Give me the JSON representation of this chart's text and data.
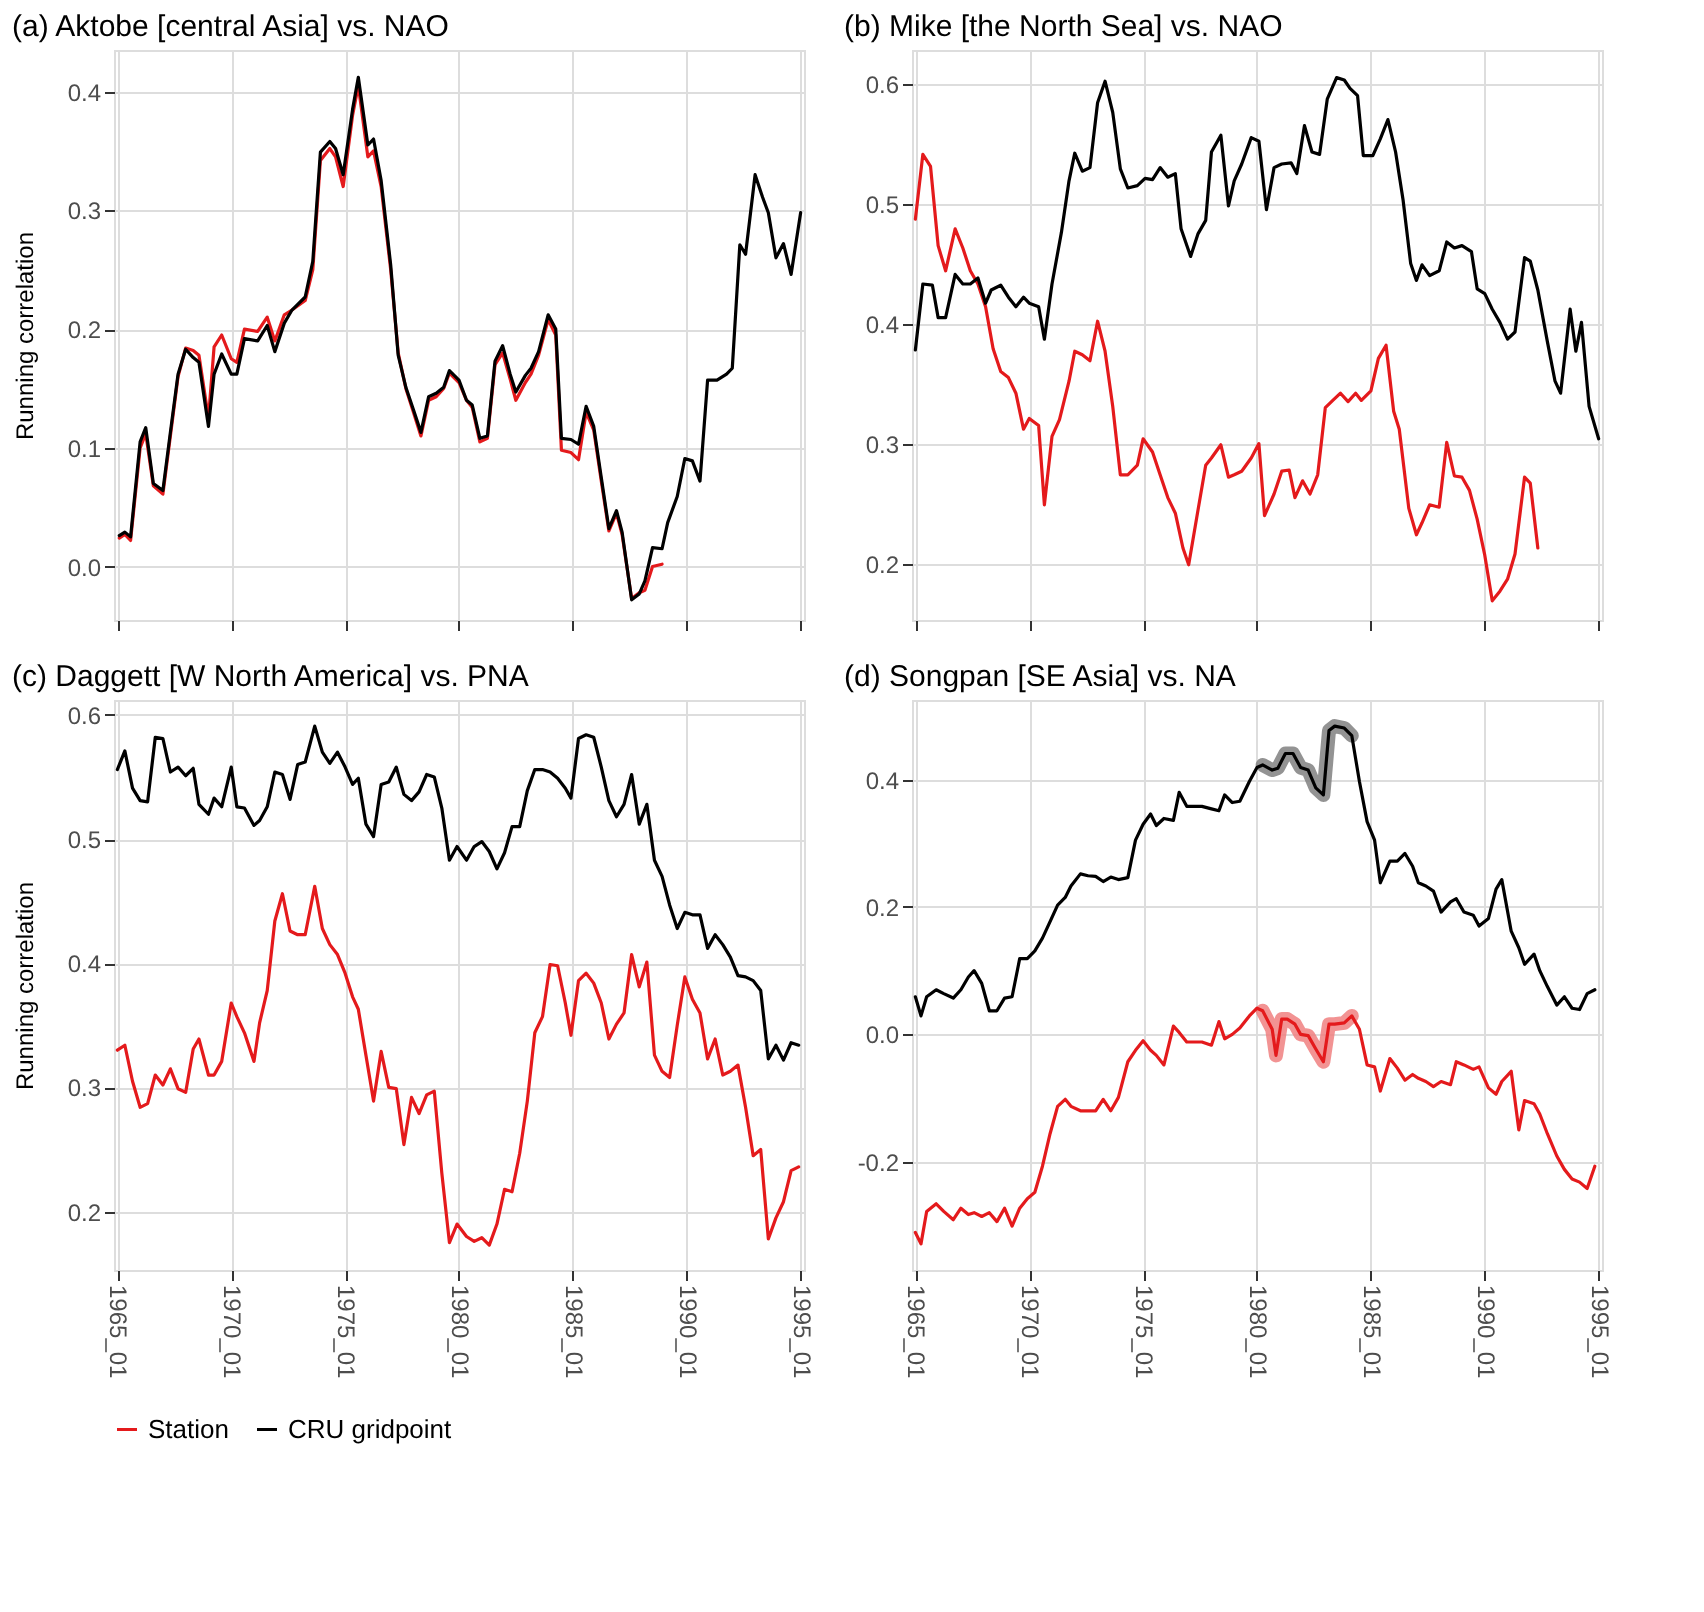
{
  "chart_data": [
    {
      "type": "line",
      "title": "(a) Aktobe [central Asia] vs. NAO",
      "ylabel": "Running correlation",
      "xlim": [
        "1964-11-08",
        "1995-02-24"
      ],
      "ylim": [
        -0.045,
        0.435
      ],
      "xticks": [
        {
          "value": "1965-01",
          "label": "1965_01"
        },
        {
          "value": "1970-01",
          "label": "1970_01"
        },
        {
          "value": "1975-01",
          "label": "1975_01"
        },
        {
          "value": "1980-01",
          "label": "1980_01"
        },
        {
          "value": "1985-01",
          "label": "1985_01"
        },
        {
          "value": "1990-01",
          "label": "1990_01"
        },
        {
          "value": "1995-01",
          "label": "1995_01"
        }
      ],
      "yticks": [
        {
          "value": 0,
          "label": "0.0"
        },
        0.1,
        0.2,
        0.3,
        0.4
      ],
      "grid": true,
      "tick_labels": "y",
      "legend": "bottom",
      "line_style": "solid",
      "marker": "none",
      "series": [
        {
          "name": "Station",
          "color": "#e41a1c",
          "x": [
            "1965-02",
            "1965-05",
            "1965-08",
            "1966-01",
            "1966-04",
            "1966-08",
            "1967-01",
            "1967-05",
            "1967-09",
            "1968-01",
            "1968-05",
            "1968-08",
            "1969-01",
            "1969-04",
            "1969-08",
            "1970-01",
            "1970-04",
            "1970-08",
            "1971-03",
            "1971-08",
            "1971-12",
            "1972-05",
            "1972-09",
            "1973-04",
            "1973-08",
            "1973-12",
            "1974-05",
            "1974-08",
            "1974-12",
            "1975-05",
            "1975-08",
            "1976-01",
            "1976-04",
            "1976-08",
            "1977-01",
            "1977-05",
            "1977-09",
            "1978-01",
            "1978-05",
            "1978-09",
            "1979-01",
            "1979-05",
            "1979-08",
            "1980-01",
            "1980-05",
            "1980-08",
            "1980-12",
            "1981-04",
            "1981-08",
            "1981-12",
            "1982-04",
            "1982-07",
            "1982-12",
            "1983-03",
            "1983-07",
            "1983-12",
            "1984-04",
            "1984-07",
            "1984-12",
            "1985-04",
            "1985-08",
            "1985-12",
            "1986-04",
            "1986-08",
            "1986-12",
            "1987-03",
            "1987-08",
            "1987-12",
            "1988-03",
            "1988-07",
            "1988-12"
          ],
          "values": [
            0.024,
            0.027,
            0.022,
            0.1,
            0.112,
            0.068,
            0.061,
            0.11,
            0.16,
            0.184,
            0.182,
            0.178,
            0.125,
            0.185,
            0.195,
            0.175,
            0.172,
            0.2,
            0.198,
            0.21,
            0.19,
            0.212,
            0.216,
            0.224,
            0.25,
            0.342,
            0.352,
            0.345,
            0.32,
            0.38,
            0.405,
            0.345,
            0.35,
            0.32,
            0.25,
            0.18,
            0.15,
            0.13,
            0.11,
            0.14,
            0.143,
            0.15,
            0.163,
            0.155,
            0.14,
            0.134,
            0.105,
            0.108,
            0.17,
            0.18,
            0.158,
            0.14,
            0.155,
            0.162,
            0.178,
            0.208,
            0.195,
            0.098,
            0.096,
            0.09,
            0.13,
            0.115,
            0.072,
            0.03,
            0.045,
            0.027,
            -0.027,
            -0.022,
            -0.02,
            0.0,
            0.002
          ]
        },
        {
          "name": "CRU gridpoint",
          "color": "#000000",
          "x": [
            "1965-02",
            "1965-05",
            "1965-08",
            "1966-01",
            "1966-04",
            "1966-08",
            "1967-01",
            "1967-05",
            "1967-09",
            "1968-01",
            "1968-05",
            "1968-08",
            "1969-01",
            "1969-04",
            "1969-08",
            "1970-01",
            "1970-04",
            "1970-08",
            "1971-03",
            "1971-08",
            "1971-12",
            "1972-05",
            "1972-09",
            "1973-04",
            "1973-08",
            "1973-12",
            "1974-05",
            "1974-08",
            "1974-12",
            "1975-05",
            "1975-08",
            "1976-01",
            "1976-04",
            "1976-08",
            "1977-01",
            "1977-05",
            "1977-09",
            "1978-01",
            "1978-05",
            "1978-09",
            "1979-01",
            "1979-05",
            "1979-08",
            "1980-01",
            "1980-05",
            "1980-08",
            "1980-12",
            "1981-04",
            "1981-08",
            "1981-12",
            "1982-04",
            "1982-07",
            "1982-12",
            "1983-03",
            "1983-07",
            "1983-12",
            "1984-04",
            "1984-07",
            "1984-12",
            "1985-04",
            "1985-08",
            "1985-12",
            "1986-04",
            "1986-08",
            "1986-12",
            "1987-03",
            "1987-08",
            "1987-12",
            "1988-03",
            "1988-07",
            "1988-12",
            "1989-03",
            "1989-08",
            "1989-12",
            "1990-04",
            "1990-08",
            "1990-12",
            "1991-05",
            "1991-10",
            "1992-01",
            "1992-05",
            "1992-08",
            "1993-01",
            "1993-05",
            "1993-08",
            "1993-12",
            "1994-04",
            "1994-08",
            "1995-01"
          ],
          "values": [
            0.026,
            0.029,
            0.025,
            0.105,
            0.117,
            0.07,
            0.064,
            0.113,
            0.162,
            0.183,
            0.176,
            0.172,
            0.118,
            0.162,
            0.179,
            0.162,
            0.162,
            0.192,
            0.19,
            0.203,
            0.181,
            0.205,
            0.216,
            0.227,
            0.257,
            0.349,
            0.358,
            0.352,
            0.33,
            0.385,
            0.412,
            0.355,
            0.36,
            0.325,
            0.254,
            0.178,
            0.151,
            0.132,
            0.113,
            0.143,
            0.146,
            0.151,
            0.165,
            0.157,
            0.14,
            0.136,
            0.108,
            0.11,
            0.173,
            0.186,
            0.162,
            0.147,
            0.161,
            0.167,
            0.181,
            0.212,
            0.2,
            0.108,
            0.107,
            0.103,
            0.135,
            0.118,
            0.075,
            0.032,
            0.047,
            0.029,
            -0.028,
            -0.023,
            -0.012,
            0.016,
            0.015,
            0.037,
            0.059,
            0.091,
            0.089,
            0.072,
            0.157,
            0.157,
            0.162,
            0.167,
            0.271,
            0.263,
            0.33,
            0.311,
            0.298,
            0.26,
            0.272,
            0.246,
            0.298
          ]
        }
      ]
    },
    {
      "type": "line",
      "title": "(b) Mike [the North Sea] vs. NAO",
      "xlim": [
        "1964-11-08",
        "1995-02-24"
      ],
      "ylim": [
        0.153,
        0.628
      ],
      "xticks": [
        {
          "value": "1965-01",
          "label": "1965_01"
        },
        {
          "value": "1970-01",
          "label": "1970_01"
        },
        {
          "value": "1975-01",
          "label": "1975_01"
        },
        {
          "value": "1980-01",
          "label": "1980_01"
        },
        {
          "value": "1985-01",
          "label": "1985_01"
        },
        {
          "value": "1990-01",
          "label": "1990_01"
        },
        {
          "value": "1995-01",
          "label": "1995_01"
        }
      ],
      "yticks": [
        0.2,
        0.3,
        0.4,
        0.5,
        0.6
      ],
      "grid": true,
      "tick_labels": "y",
      "legend": "bottom",
      "line_style": "solid",
      "marker": "none",
      "series": [
        {
          "name": "Station",
          "color": "#e41a1c",
          "x": [
            "1965-01",
            "1965-05",
            "1965-09",
            "1966-01",
            "1966-05",
            "1966-10",
            "1967-02",
            "1967-06",
            "1967-10",
            "1968-02",
            "1968-06",
            "1968-10",
            "1969-02",
            "1969-06",
            "1969-10",
            "1970-01",
            "1970-06",
            "1970-09",
            "1971-01",
            "1971-05",
            "1971-10",
            "1972-01",
            "1972-05",
            "1972-09",
            "1973-01",
            "1973-05",
            "1973-09",
            "1974-01",
            "1974-05",
            "1974-10",
            "1975-01",
            "1975-06",
            "1975-10",
            "1976-02",
            "1976-06",
            "1976-10",
            "1977-01",
            "1977-06",
            "1977-10",
            "1978-01",
            "1978-06",
            "1978-10",
            "1979-01",
            "1979-05",
            "1979-10",
            "1980-02",
            "1980-05",
            "1980-10",
            "1981-02",
            "1981-06",
            "1981-09",
            "1982-01",
            "1982-05",
            "1982-09",
            "1983-01",
            "1983-05",
            "1983-09",
            "1984-01",
            "1984-05",
            "1984-08",
            "1985-01",
            "1985-05",
            "1985-09",
            "1986-01",
            "1986-04",
            "1986-09",
            "1987-01",
            "1987-04",
            "1987-08",
            "1988-01",
            "1988-05",
            "1988-09",
            "1989-01",
            "1989-05",
            "1989-09",
            "1990-01",
            "1990-05",
            "1990-09",
            "1991-01",
            "1991-05",
            "1991-10",
            "1992-01",
            "1992-05"
          ],
          "values": [
            0.487,
            0.541,
            0.531,
            0.465,
            0.444,
            0.479,
            0.463,
            0.444,
            0.433,
            0.414,
            0.379,
            0.36,
            0.355,
            0.342,
            0.312,
            0.321,
            0.315,
            0.249,
            0.306,
            0.32,
            0.352,
            0.377,
            0.374,
            0.369,
            0.402,
            0.377,
            0.331,
            0.274,
            0.274,
            0.282,
            0.304,
            0.293,
            0.274,
            0.255,
            0.242,
            0.213,
            0.199,
            0.245,
            0.282,
            0.288,
            0.299,
            0.272,
            0.274,
            0.277,
            0.288,
            0.3,
            0.24,
            0.258,
            0.277,
            0.278,
            0.255,
            0.269,
            0.258,
            0.274,
            0.33,
            0.336,
            0.342,
            0.335,
            0.342,
            0.336,
            0.344,
            0.371,
            0.382,
            0.327,
            0.312,
            0.246,
            0.224,
            0.234,
            0.249,
            0.247,
            0.301,
            0.273,
            0.272,
            0.261,
            0.237,
            0.207,
            0.169,
            0.177,
            0.187,
            0.208,
            0.272,
            0.267,
            0.213
          ]
        },
        {
          "name": "CRU gridpoint",
          "color": "#000000",
          "x": [
            "1965-01",
            "1965-05",
            "1965-10",
            "1966-01",
            "1966-05",
            "1966-10",
            "1967-02",
            "1967-06",
            "1967-10",
            "1968-02",
            "1968-05",
            "1968-10",
            "1969-02",
            "1969-06",
            "1969-10",
            "1970-01",
            "1970-06",
            "1970-09",
            "1971-01",
            "1971-06",
            "1971-10",
            "1972-01",
            "1972-05",
            "1972-09",
            "1973-01",
            "1973-05",
            "1973-09",
            "1974-01",
            "1974-05",
            "1974-10",
            "1975-02",
            "1975-06",
            "1975-10",
            "1976-02",
            "1976-06",
            "1976-09",
            "1977-02",
            "1977-06",
            "1977-10",
            "1978-01",
            "1978-06",
            "1978-10",
            "1979-01",
            "1979-05",
            "1979-10",
            "1980-02",
            "1980-06",
            "1980-10",
            "1981-02",
            "1981-07",
            "1981-10",
            "1982-02",
            "1982-06",
            "1982-10",
            "1983-02",
            "1983-07",
            "1983-11",
            "1984-02",
            "1984-06",
            "1984-09",
            "1985-02",
            "1985-06",
            "1985-10",
            "1986-02",
            "1986-06",
            "1986-10",
            "1987-01",
            "1987-04",
            "1987-08",
            "1988-01",
            "1988-05",
            "1988-09",
            "1989-01",
            "1989-06",
            "1989-09",
            "1990-01",
            "1990-05",
            "1990-09",
            "1991-01",
            "1991-05",
            "1991-10",
            "1992-01",
            "1992-05",
            "1992-10",
            "1993-02",
            "1993-05",
            "1993-10",
            "1994-01",
            "1994-04",
            "1994-08",
            "1995-01"
          ],
          "values": [
            0.378,
            0.433,
            0.432,
            0.405,
            0.405,
            0.441,
            0.433,
            0.433,
            0.438,
            0.417,
            0.428,
            0.432,
            0.422,
            0.414,
            0.422,
            0.417,
            0.414,
            0.387,
            0.433,
            0.476,
            0.519,
            0.542,
            0.527,
            0.53,
            0.584,
            0.602,
            0.576,
            0.529,
            0.513,
            0.515,
            0.521,
            0.52,
            0.53,
            0.522,
            0.525,
            0.479,
            0.456,
            0.475,
            0.486,
            0.543,
            0.557,
            0.498,
            0.519,
            0.533,
            0.555,
            0.552,
            0.495,
            0.53,
            0.533,
            0.534,
            0.525,
            0.565,
            0.543,
            0.541,
            0.587,
            0.605,
            0.603,
            0.596,
            0.59,
            0.54,
            0.54,
            0.554,
            0.57,
            0.543,
            0.503,
            0.45,
            0.436,
            0.449,
            0.44,
            0.444,
            0.468,
            0.463,
            0.465,
            0.46,
            0.429,
            0.425,
            0.412,
            0.401,
            0.387,
            0.393,
            0.455,
            0.452,
            0.428,
            0.385,
            0.352,
            0.342,
            0.412,
            0.377,
            0.401,
            0.331,
            0.304
          ]
        }
      ]
    },
    {
      "type": "line",
      "title": "(c) Daggett [W North America] vs. PNA",
      "ylabel": "Running correlation",
      "xlim": [
        "1964-11-08",
        "1995-02-24"
      ],
      "ylim": [
        0.153,
        0.612
      ],
      "xticks": [
        {
          "value": "1965-01",
          "label": "1965_01"
        },
        {
          "value": "1970-01",
          "label": "1970_01"
        },
        {
          "value": "1975-01",
          "label": "1975_01"
        },
        {
          "value": "1980-01",
          "label": "1980_01"
        },
        {
          "value": "1985-01",
          "label": "1985_01"
        },
        {
          "value": "1990-01",
          "label": "1990_01"
        },
        {
          "value": "1995-01",
          "label": "1995_01"
        }
      ],
      "yticks": [
        0.2,
        0.3,
        0.4,
        0.5,
        0.6
      ],
      "grid": true,
      "legend": "bottom",
      "line_style": "solid",
      "marker": "none",
      "series": [
        {
          "name": "Station",
          "color": "#e41a1c",
          "x": [
            "1965-01",
            "1965-05",
            "1965-09",
            "1966-01",
            "1966-05",
            "1966-09",
            "1967-01",
            "1967-05",
            "1967-09",
            "1968-01",
            "1968-05",
            "1968-08",
            "1969-01",
            "1969-04",
            "1969-08",
            "1970-01",
            "1970-04",
            "1970-08",
            "1971-01",
            "1971-04",
            "1971-08",
            "1971-12",
            "1972-04",
            "1972-08",
            "1972-12",
            "1973-04",
            "1973-09",
            "1974-01",
            "1974-05",
            "1974-09",
            "1975-01",
            "1975-05",
            "1975-08",
            "1975-12",
            "1976-04",
            "1976-08",
            "1976-12",
            "1977-04",
            "1977-08",
            "1977-12",
            "1978-04",
            "1978-08",
            "1978-12",
            "1979-04",
            "1979-08",
            "1979-12",
            "1980-05",
            "1980-09",
            "1981-01",
            "1981-05",
            "1981-09",
            "1982-01",
            "1982-05",
            "1982-09",
            "1983-01",
            "1983-05",
            "1983-09",
            "1984-01",
            "1984-05",
            "1984-09",
            "1984-12",
            "1985-04",
            "1985-08",
            "1985-12",
            "1986-04",
            "1986-08",
            "1986-12",
            "1987-04",
            "1987-08",
            "1987-12",
            "1988-04",
            "1988-08",
            "1988-12",
            "1989-04",
            "1989-08",
            "1989-12",
            "1990-04",
            "1990-08",
            "1990-12",
            "1991-04",
            "1991-08",
            "1991-12",
            "1992-04",
            "1992-08",
            "1992-12",
            "1993-04",
            "1993-08",
            "1993-12",
            "1994-04",
            "1994-08",
            "1994-12"
          ],
          "values": [
            0.33,
            0.334,
            0.305,
            0.284,
            0.287,
            0.31,
            0.302,
            0.315,
            0.299,
            0.296,
            0.331,
            0.339,
            0.31,
            0.31,
            0.321,
            0.368,
            0.357,
            0.344,
            0.321,
            0.352,
            0.378,
            0.434,
            0.456,
            0.426,
            0.423,
            0.423,
            0.462,
            0.428,
            0.415,
            0.407,
            0.392,
            0.373,
            0.363,
            0.326,
            0.289,
            0.329,
            0.3,
            0.299,
            0.254,
            0.292,
            0.279,
            0.294,
            0.297,
            0.231,
            0.175,
            0.19,
            0.18,
            0.176,
            0.179,
            0.173,
            0.19,
            0.218,
            0.216,
            0.247,
            0.289,
            0.344,
            0.357,
            0.399,
            0.398,
            0.368,
            0.342,
            0.386,
            0.392,
            0.384,
            0.368,
            0.339,
            0.351,
            0.36,
            0.407,
            0.381,
            0.401,
            0.326,
            0.313,
            0.308,
            0.35,
            0.389,
            0.371,
            0.36,
            0.323,
            0.339,
            0.31,
            0.313,
            0.318,
            0.284,
            0.245,
            0.25,
            0.178,
            0.195,
            0.208,
            0.233,
            0.236
          ]
        },
        {
          "name": "CRU gridpoint",
          "color": "#000000",
          "x": [
            "1965-01",
            "1965-05",
            "1965-09",
            "1966-01",
            "1966-05",
            "1966-09",
            "1967-01",
            "1967-05",
            "1967-09",
            "1968-01",
            "1968-05",
            "1968-08",
            "1969-01",
            "1969-04",
            "1969-08",
            "1970-01",
            "1970-04",
            "1970-08",
            "1971-01",
            "1971-04",
            "1971-08",
            "1971-12",
            "1972-04",
            "1972-08",
            "1972-12",
            "1973-04",
            "1973-09",
            "1974-01",
            "1974-05",
            "1974-09",
            "1975-01",
            "1975-05",
            "1975-08",
            "1975-12",
            "1976-04",
            "1976-08",
            "1976-12",
            "1977-04",
            "1977-08",
            "1977-12",
            "1978-04",
            "1978-08",
            "1978-12",
            "1979-04",
            "1979-08",
            "1979-12",
            "1980-05",
            "1980-09",
            "1981-01",
            "1981-05",
            "1981-09",
            "1982-01",
            "1982-05",
            "1982-09",
            "1983-01",
            "1983-05",
            "1983-09",
            "1984-01",
            "1984-05",
            "1984-09",
            "1984-12",
            "1985-04",
            "1985-08",
            "1985-12",
            "1986-04",
            "1986-08",
            "1986-12",
            "1987-04",
            "1987-08",
            "1987-12",
            "1988-04",
            "1988-08",
            "1988-12",
            "1989-04",
            "1989-08",
            "1989-12",
            "1990-04",
            "1990-08",
            "1990-12",
            "1991-04",
            "1991-08",
            "1991-12",
            "1992-04",
            "1992-08",
            "1992-12",
            "1993-04",
            "1993-08",
            "1993-12",
            "1994-04",
            "1994-08",
            "1994-12"
          ],
          "values": [
            0.556,
            0.571,
            0.541,
            0.531,
            0.53,
            0.582,
            0.581,
            0.554,
            0.558,
            0.551,
            0.557,
            0.528,
            0.52,
            0.533,
            0.526,
            0.558,
            0.526,
            0.525,
            0.511,
            0.515,
            0.526,
            0.554,
            0.552,
            0.532,
            0.56,
            0.562,
            0.591,
            0.57,
            0.561,
            0.57,
            0.558,
            0.544,
            0.549,
            0.512,
            0.502,
            0.544,
            0.546,
            0.558,
            0.536,
            0.531,
            0.538,
            0.552,
            0.55,
            0.525,
            0.483,
            0.494,
            0.483,
            0.494,
            0.498,
            0.49,
            0.476,
            0.489,
            0.51,
            0.51,
            0.539,
            0.556,
            0.556,
            0.554,
            0.549,
            0.541,
            0.533,
            0.581,
            0.584,
            0.582,
            0.558,
            0.531,
            0.518,
            0.528,
            0.552,
            0.512,
            0.528,
            0.483,
            0.47,
            0.447,
            0.428,
            0.441,
            0.439,
            0.439,
            0.412,
            0.423,
            0.415,
            0.405,
            0.39,
            0.389,
            0.386,
            0.378,
            0.323,
            0.334,
            0.322,
            0.336,
            0.334
          ]
        }
      ]
    },
    {
      "type": "line",
      "title": "(d) Songpan [SE Asia] vs. NA",
      "xlim": [
        "1964-11-08",
        "1995-02-24"
      ],
      "ylim": [
        -0.37,
        0.525
      ],
      "xticks": [
        {
          "value": "1965-01",
          "label": "1965_01"
        },
        {
          "value": "1970-01",
          "label": "1970_01"
        },
        {
          "value": "1975-01",
          "label": "1975_01"
        },
        {
          "value": "1980-01",
          "label": "1980_01"
        },
        {
          "value": "1985-01",
          "label": "1985_01"
        },
        {
          "value": "1990-01",
          "label": "1990_01"
        },
        {
          "value": "1995-01",
          "label": "1995_01"
        }
      ],
      "yticks": [
        -0.2,
        {
          "value": 0,
          "label": "0.0"
        },
        0.2,
        0.4
      ],
      "grid": true,
      "legend": "bottom",
      "line_style": "solid",
      "marker": "none",
      "series": [
        {
          "color": "#808080",
          "x": [
            "1980-04",
            "1980-09",
            "1980-12",
            "1981-04",
            "1981-08",
            "1981-12",
            "1982-04",
            "1982-08",
            "1982-12",
            "1983-03",
            "1983-06",
            "1983-11",
            "1984-03"
          ],
          "values": [
            0.423,
            0.415,
            0.418,
            0.441,
            0.441,
            0.419,
            0.415,
            0.387,
            0.376,
            0.477,
            0.484,
            0.481,
            0.469
          ]
        },
        {
          "color": "#f08080",
          "x": [
            "1980-04",
            "1980-09",
            "1980-11",
            "1981-02",
            "1981-05",
            "1981-09",
            "1981-12",
            "1982-04",
            "1982-08",
            "1982-12",
            "1983-03",
            "1983-06",
            "1983-11",
            "1984-03"
          ],
          "values": [
            0.037,
            0.008,
            -0.033,
            0.024,
            0.024,
            0.016,
            0.0,
            -0.002,
            -0.023,
            -0.043,
            0.016,
            0.016,
            0.018,
            0.029
          ]
        },
        {
          "name": "Station",
          "color": "#e41a1c",
          "x": [
            "1965-01",
            "1965-04",
            "1965-07",
            "1965-12",
            "1966-04",
            "1966-09",
            "1967-01",
            "1967-05",
            "1967-08",
            "1967-12",
            "1968-04",
            "1968-08",
            "1968-12",
            "1969-04",
            "1969-08",
            "1969-12",
            "1970-04",
            "1970-08",
            "1970-12",
            "1971-04",
            "1971-08",
            "1971-11",
            "1972-04",
            "1972-08",
            "1972-12",
            "1973-04",
            "1973-08",
            "1973-12",
            "1974-05",
            "1974-09",
            "1975-01",
            "1975-05",
            "1975-08",
            "1975-12",
            "1976-05",
            "1976-08",
            "1976-12",
            "1977-04",
            "1977-08",
            "1978-01",
            "1978-05",
            "1978-08",
            "1978-12",
            "1979-04",
            "1979-09",
            "1980-01",
            "1980-04",
            "1980-09",
            "1980-11",
            "1981-02",
            "1981-05",
            "1981-09",
            "1981-12",
            "1982-04",
            "1982-08",
            "1982-12",
            "1983-03",
            "1983-06",
            "1983-11",
            "1984-03",
            "1984-07",
            "1984-11",
            "1985-03",
            "1985-06",
            "1985-11",
            "1986-03",
            "1986-07",
            "1986-11",
            "1987-02",
            "1987-06",
            "1987-10",
            "1988-02",
            "1988-07",
            "1988-10",
            "1989-02",
            "1989-07",
            "1989-10",
            "1990-03",
            "1990-07",
            "1990-10",
            "1991-03",
            "1991-07",
            "1991-10",
            "1992-03",
            "1992-06",
            "1992-10",
            "1993-03",
            "1993-07",
            "1993-11",
            "1994-03",
            "1994-07",
            "1994-11"
          ],
          "values": [
            -0.311,
            -0.329,
            -0.278,
            -0.266,
            -0.278,
            -0.291,
            -0.273,
            -0.283,
            -0.28,
            -0.286,
            -0.28,
            -0.294,
            -0.273,
            -0.301,
            -0.273,
            -0.258,
            -0.248,
            -0.207,
            -0.156,
            -0.113,
            -0.102,
            -0.113,
            -0.12,
            -0.12,
            -0.12,
            -0.102,
            -0.12,
            -0.099,
            -0.043,
            -0.025,
            -0.01,
            -0.025,
            -0.033,
            -0.048,
            0.013,
            0.003,
            -0.012,
            -0.012,
            -0.012,
            -0.017,
            0.02,
            -0.007,
            0.0,
            0.01,
            0.029,
            0.041,
            0.037,
            0.008,
            -0.033,
            0.024,
            0.024,
            0.016,
            0.0,
            -0.002,
            -0.023,
            -0.043,
            0.016,
            0.016,
            0.018,
            0.029,
            0.008,
            -0.048,
            -0.051,
            -0.089,
            -0.038,
            -0.053,
            -0.072,
            -0.063,
            -0.069,
            -0.074,
            -0.082,
            -0.074,
            -0.079,
            -0.043,
            -0.048,
            -0.055,
            -0.051,
            -0.084,
            -0.094,
            -0.074,
            -0.058,
            -0.15,
            -0.104,
            -0.109,
            -0.125,
            -0.156,
            -0.191,
            -0.212,
            -0.227,
            -0.232,
            -0.242,
            -0.207
          ]
        },
        {
          "name": "CRU gridpoint",
          "color": "#000000",
          "x": [
            "1965-01",
            "1965-04",
            "1965-07",
            "1965-12",
            "1966-04",
            "1966-09",
            "1967-01",
            "1967-05",
            "1967-08",
            "1967-12",
            "1968-04",
            "1968-08",
            "1968-12",
            "1969-04",
            "1969-08",
            "1969-12",
            "1970-04",
            "1970-08",
            "1970-12",
            "1971-04",
            "1971-08",
            "1971-11",
            "1972-04",
            "1972-08",
            "1972-12",
            "1973-04",
            "1973-08",
            "1973-12",
            "1974-05",
            "1974-09",
            "1975-01",
            "1975-05",
            "1975-08",
            "1975-12",
            "1976-05",
            "1976-08",
            "1976-12",
            "1977-04",
            "1977-08",
            "1978-01",
            "1978-05",
            "1978-08",
            "1978-12",
            "1979-04",
            "1979-09",
            "1980-01",
            "1980-04",
            "1980-09",
            "1980-12",
            "1981-04",
            "1981-08",
            "1981-12",
            "1982-04",
            "1982-08",
            "1982-12",
            "1983-03",
            "1983-06",
            "1983-11",
            "1984-03",
            "1984-07",
            "1984-11",
            "1985-03",
            "1985-06",
            "1985-11",
            "1986-03",
            "1986-07",
            "1986-11",
            "1987-02",
            "1987-06",
            "1987-10",
            "1988-02",
            "1988-07",
            "1988-10",
            "1989-02",
            "1989-07",
            "1989-10",
            "1990-03",
            "1990-07",
            "1990-10",
            "1991-03",
            "1991-07",
            "1991-10",
            "1992-03",
            "1992-06",
            "1992-10",
            "1993-03",
            "1993-07",
            "1993-11",
            "1994-03",
            "1994-07",
            "1994-11"
          ],
          "values": [
            0.059,
            0.029,
            0.059,
            0.07,
            0.064,
            0.057,
            0.07,
            0.09,
            0.1,
            0.08,
            0.037,
            0.037,
            0.057,
            0.059,
            0.119,
            0.119,
            0.131,
            0.151,
            0.177,
            0.203,
            0.215,
            0.233,
            0.252,
            0.249,
            0.248,
            0.24,
            0.247,
            0.243,
            0.246,
            0.305,
            0.33,
            0.346,
            0.328,
            0.339,
            0.336,
            0.38,
            0.358,
            0.358,
            0.358,
            0.354,
            0.351,
            0.376,
            0.364,
            0.366,
            0.397,
            0.419,
            0.423,
            0.415,
            0.418,
            0.441,
            0.441,
            0.419,
            0.415,
            0.387,
            0.376,
            0.477,
            0.484,
            0.481,
            0.469,
            0.397,
            0.334,
            0.305,
            0.238,
            0.272,
            0.272,
            0.284,
            0.264,
            0.238,
            0.233,
            0.225,
            0.192,
            0.208,
            0.213,
            0.192,
            0.187,
            0.17,
            0.182,
            0.228,
            0.243,
            0.162,
            0.136,
            0.11,
            0.126,
            0.1,
            0.075,
            0.046,
            0.059,
            0.041,
            0.039,
            0.064,
            0.07
          ]
        }
      ]
    }
  ]
}
